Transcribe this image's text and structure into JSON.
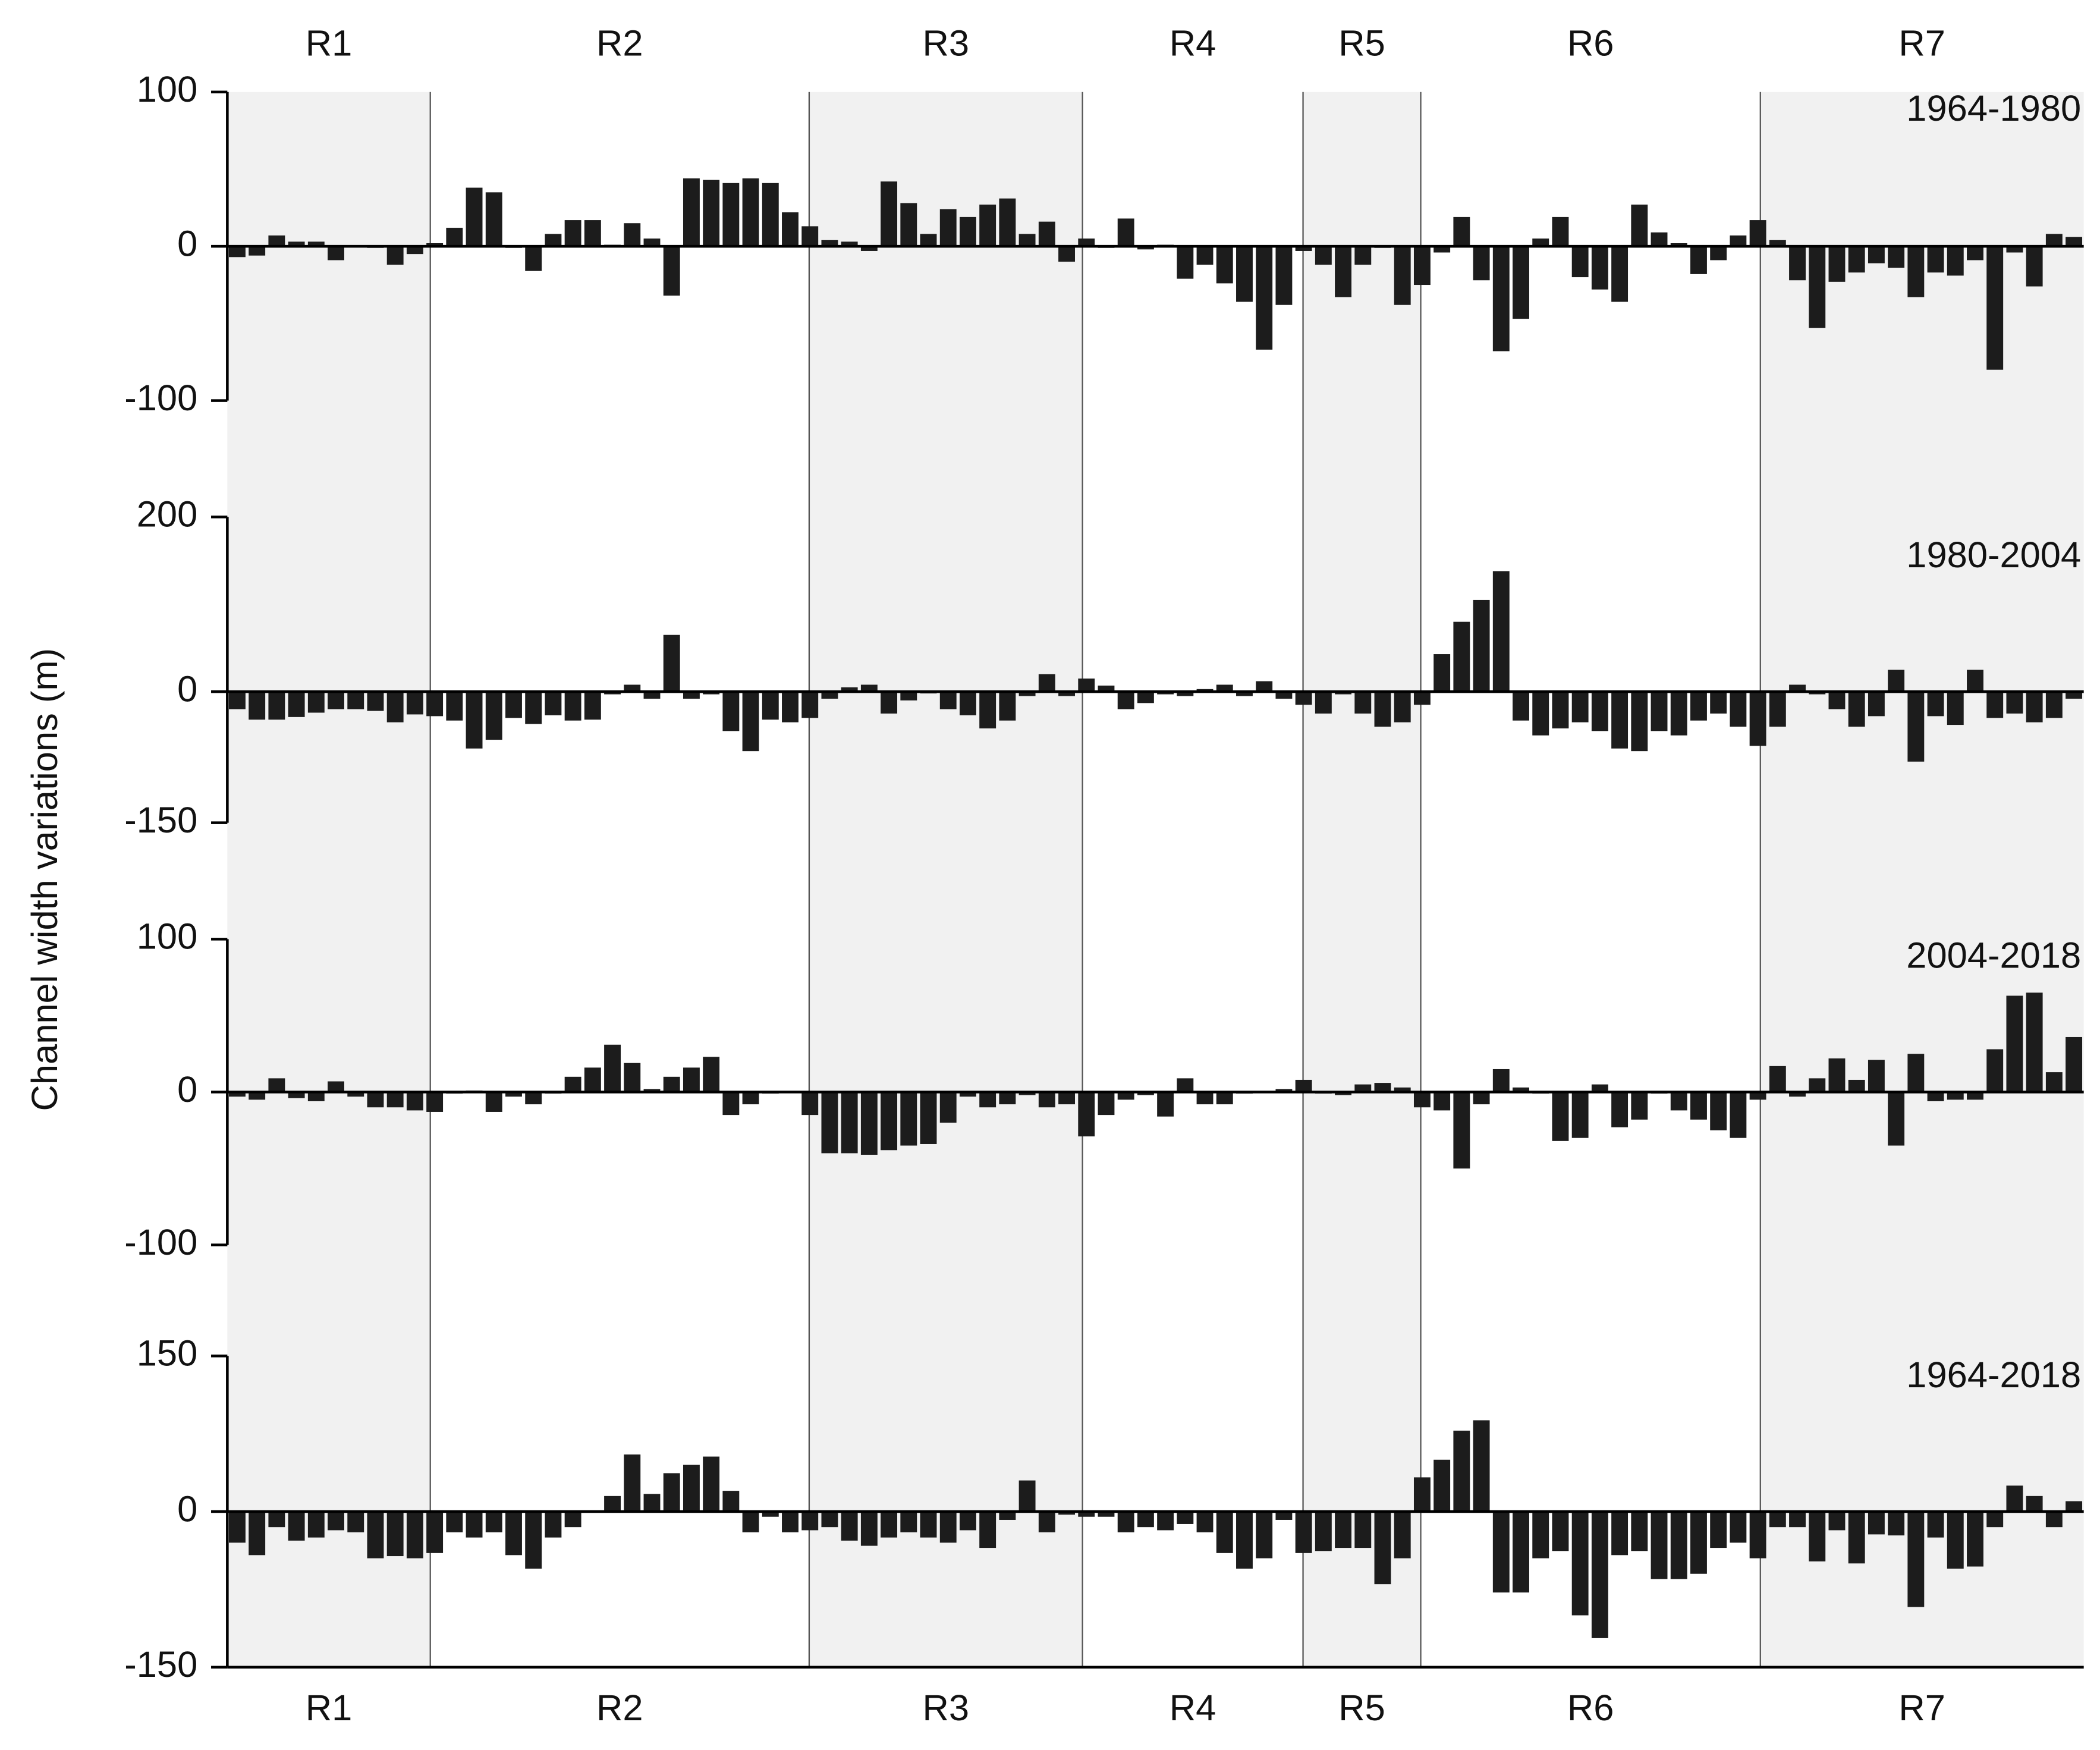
{
  "y_label": "Channel width variations (m)",
  "regions": [
    "R1",
    "R2",
    "R3",
    "R4",
    "R5",
    "R6",
    "R7"
  ],
  "chart_data": [
    {
      "type": "bar",
      "title": "1964-1980",
      "color": "#1c1c1c",
      "ylim": [
        -100,
        100
      ],
      "yticks": [
        -100,
        0,
        100
      ],
      "values": [
        -7,
        -6,
        7,
        3,
        3,
        -9,
        0,
        -1,
        -12,
        -5,
        2,
        12,
        38,
        35,
        -1,
        -16,
        8,
        17,
        17,
        1,
        15,
        5,
        -32,
        44,
        43,
        41,
        44,
        41,
        22,
        13,
        4,
        3,
        -3,
        42,
        28,
        8,
        24,
        19,
        27,
        31,
        8,
        16,
        -10,
        5,
        -1,
        18,
        -2,
        1,
        -21,
        -12,
        -24,
        -36,
        -67,
        -38,
        -3,
        -12,
        -33,
        -12,
        -1,
        -38,
        -25,
        -4,
        19,
        -22,
        -68,
        -47,
        5,
        19,
        -20,
        -28,
        -36,
        27,
        9,
        2,
        -18,
        -9,
        7,
        17,
        4,
        -22,
        -53,
        -23,
        -17,
        -11,
        -14,
        -33,
        -17,
        -19,
        -9,
        -80,
        -4,
        -26,
        8,
        6
      ]
    },
    {
      "type": "bar",
      "title": "1980-2004",
      "color": "#1c1c1c",
      "ylim": [
        -150,
        200
      ],
      "yticks": [
        -150,
        0,
        200
      ],
      "values": [
        -20,
        -32,
        -32,
        -29,
        -24,
        -20,
        -20,
        -22,
        -35,
        -26,
        -28,
        -33,
        -65,
        -55,
        -30,
        -37,
        -27,
        -33,
        -32,
        -3,
        8,
        -8,
        65,
        -8,
        -3,
        -45,
        -68,
        -32,
        -35,
        -30,
        -8,
        5,
        8,
        -25,
        -10,
        -2,
        -20,
        -27,
        -42,
        -33,
        -5,
        20,
        -5,
        15,
        7,
        -20,
        -13,
        -3,
        -5,
        3,
        8,
        -5,
        12,
        -8,
        -15,
        -25,
        -3,
        -25,
        -40,
        -35,
        -15,
        43,
        80,
        105,
        138,
        -33,
        -50,
        -42,
        -35,
        -45,
        -65,
        -68,
        -45,
        -50,
        -33,
        -25,
        -40,
        -62,
        -40,
        8,
        -3,
        -20,
        -40,
        -28,
        25,
        -80,
        -28,
        -38,
        25,
        -30,
        -25,
        -35,
        -30,
        -8
      ]
    },
    {
      "type": "bar",
      "title": "2004-2018",
      "color": "#1c1c1c",
      "ylim": [
        -100,
        100
      ],
      "yticks": [
        -100,
        0,
        100
      ],
      "values": [
        -3,
        -5,
        9,
        -4,
        -6,
        7,
        -3,
        -10,
        -10,
        -12,
        -13,
        -1,
        1,
        -13,
        -3,
        -8,
        -1,
        10,
        16,
        31,
        19,
        2,
        10,
        16,
        23,
        -15,
        -8,
        -1,
        0,
        -15,
        -40,
        -40,
        -41,
        -38,
        -35,
        -34,
        -20,
        -3,
        -10,
        -8,
        -2,
        -10,
        -8,
        -29,
        -15,
        -5,
        -2,
        -16,
        9,
        -8,
        -8,
        -1,
        0,
        2,
        8,
        -1,
        -2,
        5,
        6,
        3,
        -10,
        -12,
        -50,
        -8,
        15,
        3,
        -1,
        -32,
        -30,
        5,
        -23,
        -18,
        -1,
        -12,
        -18,
        -25,
        -30,
        -5,
        17,
        -3,
        9,
        22,
        8,
        21,
        -35,
        25,
        -6,
        -5,
        -5,
        28,
        63,
        65,
        13,
        36
      ]
    },
    {
      "type": "bar",
      "title": "1964-2018",
      "color": "#1c1c1c",
      "ylim": [
        -150,
        150
      ],
      "yticks": [
        -150,
        0,
        150
      ],
      "values": [
        -30,
        -42,
        -15,
        -28,
        -25,
        -18,
        -20,
        -45,
        -43,
        -45,
        -40,
        -20,
        -25,
        -20,
        -42,
        -55,
        -25,
        -15,
        0,
        15,
        55,
        17,
        37,
        45,
        53,
        20,
        -20,
        -5,
        -20,
        -18,
        -15,
        -28,
        -33,
        -25,
        -20,
        -25,
        -30,
        -18,
        -35,
        -8,
        30,
        -20,
        -3,
        -5,
        -5,
        -20,
        -15,
        -18,
        -12,
        -20,
        -40,
        -55,
        -45,
        -8,
        -40,
        -38,
        -35,
        -35,
        -70,
        -45,
        33,
        50,
        78,
        88,
        -78,
        -78,
        -45,
        -38,
        -100,
        -122,
        -42,
        -38,
        -65,
        -65,
        -60,
        -35,
        -30,
        -45,
        -15,
        -15,
        -48,
        -18,
        -50,
        -22,
        -23,
        -92,
        -25,
        -55,
        -53,
        -15,
        25,
        15,
        -15,
        10
      ]
    }
  ]
}
